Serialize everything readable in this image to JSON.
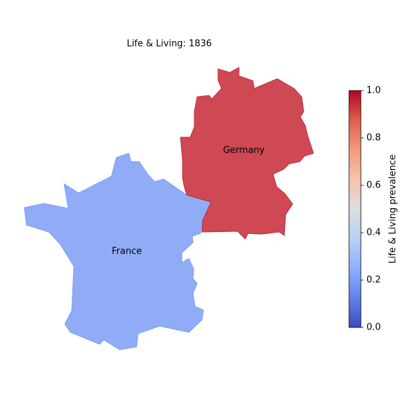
{
  "chart_data": {
    "type": "choropleth",
    "title": "Life & Living: 1836",
    "regions": [
      {
        "name": "France",
        "value": 0.2
      },
      {
        "name": "Germany",
        "value": 0.95
      }
    ],
    "colormap": "coolwarm",
    "colorbar_label": "Life & Living prevalence",
    "clim": [
      0,
      1
    ],
    "colorbar_ticks": [
      {
        "value": 0,
        "label": "0.0"
      },
      0.2,
      0.4,
      0.6,
      0.8,
      {
        "value": 1,
        "label": "1.0"
      }
    ]
  }
}
